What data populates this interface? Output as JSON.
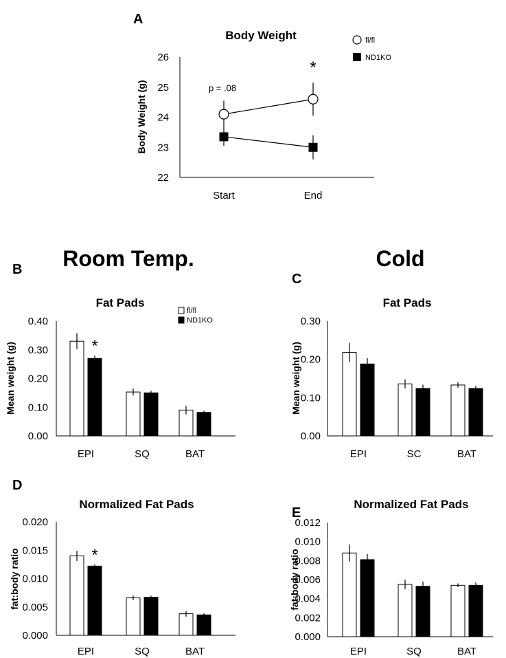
{
  "headings": {
    "room": "Room Temp.",
    "cold": "Cold"
  },
  "chart_data": [
    {
      "id": "A",
      "panel": "A",
      "type": "line",
      "title": "Body Weight",
      "ylabel": "Body Weight (g)",
      "xlabel": "",
      "categories": [
        "Start",
        "End"
      ],
      "ylim": [
        22,
        26
      ],
      "yticks": [
        "22",
        "23",
        "24",
        "25",
        "26"
      ],
      "series": [
        {
          "name": "fl/fl",
          "marker": "open-circle",
          "values": [
            24.1,
            24.6
          ],
          "errors": [
            0.45,
            0.55
          ]
        },
        {
          "name": "ND1KO",
          "marker": "filled-square",
          "values": [
            23.35,
            23.0
          ],
          "errors": [
            0.3,
            0.4
          ]
        }
      ],
      "legend": "top-right",
      "annotations": [
        {
          "text": "p = .08",
          "category": 0
        },
        {
          "text": "*",
          "category": 1
        }
      ]
    },
    {
      "id": "B",
      "panel": "B",
      "type": "bar",
      "title": "Fat Pads",
      "ylabel": "Mean weight (g)",
      "xlabel": "",
      "categories": [
        "EPI",
        "SQ",
        "BAT"
      ],
      "ylim": [
        0,
        0.4
      ],
      "yticks": [
        "0.00",
        "0.10",
        "0.20",
        "0.30",
        "0.40"
      ],
      "series": [
        {
          "name": "fl/fl",
          "values": [
            0.33,
            0.153,
            0.09
          ],
          "errors": [
            0.028,
            0.012,
            0.015
          ]
        },
        {
          "name": "ND1KO",
          "values": [
            0.27,
            0.15,
            0.082
          ],
          "errors": [
            0.01,
            0.007,
            0.006
          ]
        }
      ],
      "legend": "top-right",
      "stars": [
        {
          "text": "*",
          "category": 0
        }
      ]
    },
    {
      "id": "C",
      "panel": "C",
      "type": "bar",
      "title": "Fat Pads",
      "ylabel": "Mean weight (g)",
      "xlabel": "",
      "categories": [
        "EPI",
        "SC",
        "BAT"
      ],
      "ylim": [
        0,
        0.3
      ],
      "yticks": [
        "0.00",
        "0.10",
        "0.20",
        "0.30"
      ],
      "series": [
        {
          "name": "fl/fl",
          "values": [
            0.218,
            0.136,
            0.133
          ],
          "errors": [
            0.025,
            0.012,
            0.007
          ]
        },
        {
          "name": "ND1KO",
          "values": [
            0.188,
            0.124,
            0.124
          ],
          "errors": [
            0.015,
            0.01,
            0.007
          ]
        }
      ],
      "stars": []
    },
    {
      "id": "D",
      "panel": "D",
      "type": "bar",
      "title": "Normalized Fat Pads",
      "ylabel": "fat:body ratio",
      "xlabel": "",
      "categories": [
        "EPI",
        "SQ",
        "BAT"
      ],
      "ylim": [
        0,
        0.02
      ],
      "yticks": [
        "0.000",
        "0.005",
        "0.010",
        "0.015",
        "0.020"
      ],
      "series": [
        {
          "name": "fl/fl",
          "values": [
            0.014,
            0.0066,
            0.0038
          ],
          "errors": [
            0.0009,
            0.0004,
            0.0005
          ]
        },
        {
          "name": "ND1KO",
          "values": [
            0.0122,
            0.0067,
            0.0036
          ],
          "errors": [
            0.0003,
            0.0003,
            0.0003
          ]
        }
      ],
      "stars": [
        {
          "text": "*",
          "category": 0
        }
      ]
    },
    {
      "id": "E",
      "panel": "E",
      "type": "bar",
      "title": "Normalized Fat Pads",
      "ylabel": "fat:body ratio",
      "xlabel": "",
      "categories": [
        "EPI",
        "SQ",
        "BAT"
      ],
      "ylim": [
        0,
        0.012
      ],
      "yticks": [
        "0.000",
        "0.002",
        "0.004",
        "0.006",
        "0.008",
        "0.010",
        "0.012"
      ],
      "series": [
        {
          "name": "fl/fl",
          "values": [
            0.0088,
            0.0055,
            0.0054
          ],
          "errors": [
            0.0009,
            0.0005,
            0.0002
          ]
        },
        {
          "name": "ND1KO",
          "values": [
            0.0081,
            0.0053,
            0.0054
          ],
          "errors": [
            0.0006,
            0.0005,
            0.0003
          ]
        }
      ],
      "stars": []
    }
  ]
}
